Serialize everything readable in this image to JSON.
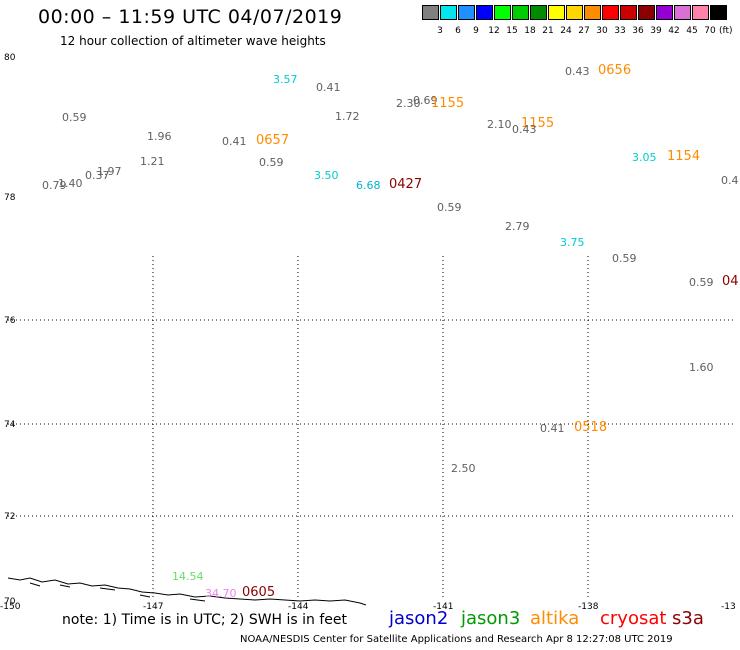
{
  "header": {
    "title": "00:00 – 11:59 UTC 04/07/2019",
    "subtitle": "12 hour collection of altimeter wave heights"
  },
  "legend": {
    "unit": "(ft)",
    "items": [
      {
        "label": "3",
        "color": "#808080"
      },
      {
        "label": "6",
        "color": "#00e5ee"
      },
      {
        "label": "9",
        "color": "#1e90ff"
      },
      {
        "label": "12",
        "color": "#0000ff"
      },
      {
        "label": "15",
        "color": "#00ff00"
      },
      {
        "label": "18",
        "color": "#00cd00"
      },
      {
        "label": "21",
        "color": "#008b00"
      },
      {
        "label": "24",
        "color": "#ffff00"
      },
      {
        "label": "27",
        "color": "#ffd700"
      },
      {
        "label": "30",
        "color": "#ff8c00"
      },
      {
        "label": "33",
        "color": "#ff0000"
      },
      {
        "label": "36",
        "color": "#cd0000"
      },
      {
        "label": "39",
        "color": "#8b0000"
      },
      {
        "label": "42",
        "color": "#9400d3"
      },
      {
        "label": "45",
        "color": "#da70d6"
      },
      {
        "label": "70",
        "color": "#ff82ab"
      },
      {
        "label": "",
        "color": "#000000"
      }
    ]
  },
  "axes": {
    "lat_labels": [
      "80",
      "78",
      "76",
      "74",
      "72",
      "70"
    ],
    "lon_labels": [
      "-150",
      "-147",
      "-144",
      "-141",
      "-138",
      "-13"
    ]
  },
  "observations": [
    {
      "text": "3.57",
      "color": "#00cdcd"
    },
    {
      "text": "0.41",
      "color": "#606060"
    },
    {
      "text": "0.43",
      "color": "#606060"
    },
    {
      "text": "0656",
      "color": "#ff8c00"
    },
    {
      "text": "2.30",
      "color": "#606060"
    },
    {
      "text": "0.69",
      "color": "#606060"
    },
    {
      "text": "1155",
      "color": "#ff8c00"
    },
    {
      "text": "0.59",
      "color": "#606060"
    },
    {
      "text": "1.72",
      "color": "#606060"
    },
    {
      "text": "2.10",
      "color": "#606060"
    },
    {
      "text": "1155",
      "color": "#ff8c00"
    },
    {
      "text": "0.43",
      "color": "#606060"
    },
    {
      "text": "1.96",
      "color": "#606060"
    },
    {
      "text": "0.41",
      "color": "#606060"
    },
    {
      "text": "0657",
      "color": "#ff8c00"
    },
    {
      "text": "3.05",
      "color": "#00cdcd"
    },
    {
      "text": "1154",
      "color": "#ff8c00"
    },
    {
      "text": "1.21",
      "color": "#606060"
    },
    {
      "text": "0.59",
      "color": "#606060"
    },
    {
      "text": "1.97",
      "color": "#606060"
    },
    {
      "text": "0.37",
      "color": "#606060"
    },
    {
      "text": "1.40",
      "color": "#606060"
    },
    {
      "text": "0.79",
      "color": "#606060"
    },
    {
      "text": "3.50",
      "color": "#00cdcd"
    },
    {
      "text": "6.68",
      "color": "#00b4cd"
    },
    {
      "text": "0427",
      "color": "#8b0000"
    },
    {
      "text": "0.4",
      "color": "#606060"
    },
    {
      "text": "0.59",
      "color": "#606060"
    },
    {
      "text": "2.79",
      "color": "#606060"
    },
    {
      "text": "3.75",
      "color": "#00cdcd"
    },
    {
      "text": "0.59",
      "color": "#606060"
    },
    {
      "text": "0.59",
      "color": "#606060"
    },
    {
      "text": "04",
      "color": "#8b0000"
    },
    {
      "text": "1.60",
      "color": "#606060"
    },
    {
      "text": "0.41",
      "color": "#606060"
    },
    {
      "text": "0518",
      "color": "#ff8c00"
    },
    {
      "text": "2.50",
      "color": "#606060"
    },
    {
      "text": "14.54",
      "color": "#66dd66"
    },
    {
      "text": "34.70",
      "color": "#ee82ee"
    },
    {
      "text": "0605",
      "color": "#8b0000"
    }
  ],
  "footer": {
    "note": "note: 1) Time is in UTC; 2) SWH is in feet",
    "satellites": [
      {
        "name": "jason2",
        "color": "#0000cd"
      },
      {
        "name": "jason3",
        "color": "#009900"
      },
      {
        "name": "altika",
        "color": "#ff8c00"
      },
      {
        "name": "cryosat",
        "color": "#ff0000"
      },
      {
        "name": "s3a",
        "color": "#8b0000"
      }
    ],
    "credit": "NOAA/NESDIS Center for Satellite Applications and Research    Apr  8 12:27:08 UTC 2019"
  }
}
